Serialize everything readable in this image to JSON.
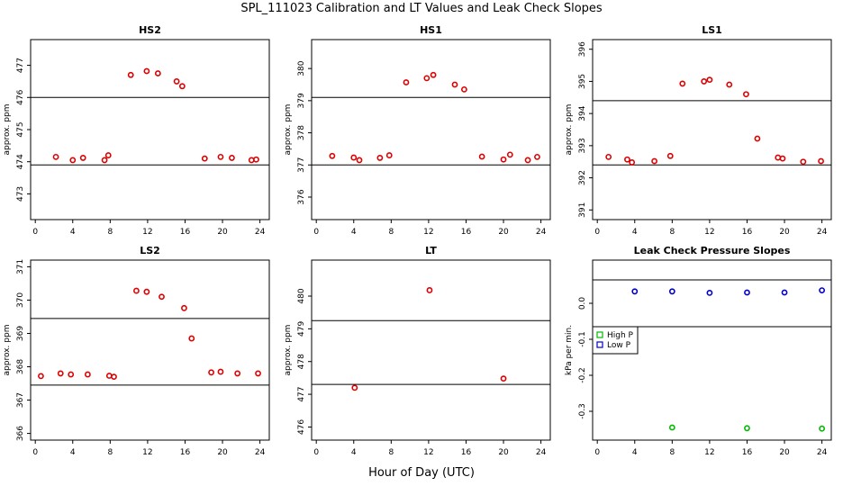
{
  "figure": {
    "title": "SPL_111023  Calibration and LT Values and Leak Check Slopes",
    "xlabel": "Hour of Day (UTC)"
  },
  "chart_data": [
    {
      "type": "scatter",
      "title": "HS2",
      "ylabel": "approx. ppm",
      "xlim": [
        -0.5,
        25
      ],
      "ylim": [
        472.2,
        477.8
      ],
      "xticks": [
        0,
        4,
        8,
        12,
        16,
        20,
        24
      ],
      "yticks": [
        473,
        474,
        475,
        476,
        477
      ],
      "hlines": [
        473.9,
        476.0
      ],
      "series": [
        {
          "color": "#dd0000",
          "marker": "circle",
          "x": [
            2.2,
            4.0,
            5.1,
            7.4,
            7.8,
            10.2,
            11.9,
            13.1,
            15.1,
            15.7,
            18.1,
            19.8,
            21.0,
            23.1,
            23.6
          ],
          "y": [
            474.15,
            474.05,
            474.12,
            474.05,
            474.2,
            476.7,
            476.82,
            476.75,
            476.5,
            476.35,
            474.1,
            474.15,
            474.12,
            474.05,
            474.07
          ]
        }
      ]
    },
    {
      "type": "scatter",
      "title": "HS1",
      "ylabel": "approx. ppm",
      "xlim": [
        -0.5,
        25
      ],
      "ylim": [
        375.3,
        380.9
      ],
      "xticks": [
        0,
        4,
        8,
        12,
        16,
        20,
        24
      ],
      "yticks": [
        376,
        377,
        378,
        379,
        380
      ],
      "hlines": [
        377.0,
        379.1
      ],
      "series": [
        {
          "color": "#dd0000",
          "marker": "circle",
          "x": [
            1.7,
            4.0,
            4.6,
            6.8,
            7.8,
            9.6,
            11.8,
            12.5,
            14.8,
            15.8,
            17.7,
            20.0,
            20.7,
            22.6,
            23.6
          ],
          "y": [
            377.28,
            377.23,
            377.15,
            377.22,
            377.3,
            379.57,
            379.7,
            379.8,
            379.5,
            379.35,
            377.26,
            377.17,
            377.32,
            377.15,
            377.25
          ]
        }
      ]
    },
    {
      "type": "scatter",
      "title": "LS1",
      "ylabel": "approx. ppm",
      "xlim": [
        -0.5,
        25
      ],
      "ylim": [
        390.7,
        396.3
      ],
      "xticks": [
        0,
        4,
        8,
        12,
        16,
        20,
        24
      ],
      "yticks": [
        391,
        392,
        393,
        394,
        395,
        396
      ],
      "hlines": [
        392.4,
        394.4
      ],
      "series": [
        {
          "color": "#dd0000",
          "marker": "circle",
          "x": [
            1.2,
            3.2,
            3.7,
            6.1,
            7.8,
            9.1,
            11.4,
            12.0,
            14.1,
            15.9,
            17.1,
            19.3,
            19.8,
            22.0,
            23.9
          ],
          "y": [
            392.65,
            392.57,
            392.48,
            392.52,
            392.68,
            394.93,
            395.0,
            395.05,
            394.9,
            394.6,
            393.22,
            392.63,
            392.6,
            392.5,
            392.52
          ]
        }
      ]
    },
    {
      "type": "scatter",
      "title": "LS2",
      "ylabel": "approx. ppm",
      "xlim": [
        -0.5,
        25
      ],
      "ylim": [
        365.8,
        371.2
      ],
      "xticks": [
        0,
        4,
        8,
        12,
        16,
        20,
        24
      ],
      "yticks": [
        366,
        367,
        368,
        369,
        370,
        371
      ],
      "hlines": [
        367.45,
        369.45
      ],
      "series": [
        {
          "color": "#dd0000",
          "marker": "circle",
          "x": [
            0.6,
            2.7,
            3.8,
            5.6,
            7.9,
            8.4,
            10.8,
            11.9,
            13.5,
            15.9,
            16.7,
            18.8,
            19.8,
            21.6,
            23.8
          ],
          "y": [
            367.72,
            367.8,
            367.77,
            367.77,
            367.73,
            367.7,
            370.28,
            370.25,
            370.1,
            369.76,
            368.85,
            367.83,
            367.85,
            367.8,
            367.8
          ]
        }
      ]
    },
    {
      "type": "scatter",
      "title": "LT",
      "ylabel": "approx. ppm",
      "xlim": [
        -0.5,
        25
      ],
      "ylim": [
        475.6,
        481.1
      ],
      "xticks": [
        0,
        4,
        8,
        12,
        16,
        20,
        24
      ],
      "yticks": [
        476,
        477,
        478,
        479,
        480
      ],
      "hlines": [
        477.3,
        479.25
      ],
      "series": [
        {
          "color": "#dd0000",
          "marker": "circle",
          "x": [
            4.1,
            12.1,
            20.0
          ],
          "y": [
            477.2,
            480.18,
            477.48
          ]
        }
      ]
    },
    {
      "type": "scatter",
      "title": "Leak Check Pressure Slopes",
      "ylabel": "kPa per min.",
      "xlim": [
        -0.5,
        25
      ],
      "ylim": [
        -0.38,
        0.12
      ],
      "xticks": [
        0,
        4,
        8,
        12,
        16,
        20,
        24
      ],
      "yticks": [
        -0.3,
        -0.2,
        -0.1,
        0.0
      ],
      "yticklabels": [
        "-0.3",
        "-0.2",
        "-0.1",
        "0.0"
      ],
      "hlines": [
        0.065,
        -0.065
      ],
      "legend": {
        "position": "left",
        "entries": [
          "High P",
          "Low P"
        ]
      },
      "series": [
        {
          "name": "High P",
          "color": "#00bb00",
          "marker": "circle",
          "x": [
            8.0,
            16.0,
            24.0
          ],
          "y": [
            -0.345,
            -0.347,
            -0.348
          ]
        },
        {
          "name": "Low P",
          "color": "#0000cc",
          "marker": "circle",
          "x": [
            4.0,
            8.0,
            12.0,
            16.0,
            20.0,
            24.0
          ],
          "y": [
            0.033,
            0.033,
            0.029,
            0.03,
            0.03,
            0.036
          ]
        }
      ]
    }
  ]
}
